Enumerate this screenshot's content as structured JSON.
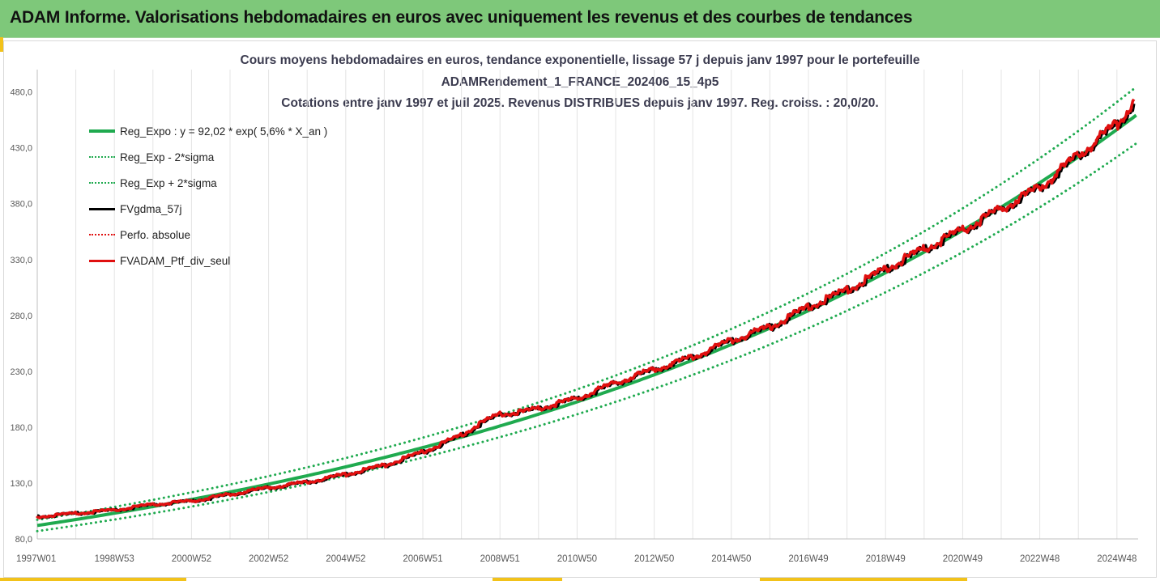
{
  "banner": {
    "title": "ADAM Informe. Valorisations hebdomadaires en euros avec uniquement les revenus et des courbes de tendances"
  },
  "colors": {
    "banner": "#7ec87a",
    "accent": "#f2c21a",
    "green": "#1faa4f",
    "black": "#000000",
    "red": "#e01010"
  },
  "chart_data": {
    "type": "line",
    "title_lines": [
      "Cours moyens hebdomadaires  en euros, tendance exponentielle, lissage 57 j depuis janv 1997 pour le portefeuille",
      "ADAMRendement_1_FRANCE_202406_15_4p5",
      "Cotations  entre janv 1997 et juil 2025. Revenus DISTRIBUES depuis janv 1997. Reg. croiss. : 20,0/20."
    ],
    "xlabel": "",
    "ylabel": "",
    "x_tick_labels": [
      "1997W01",
      "1998W53",
      "2000W52",
      "2002W52",
      "2004W52",
      "2006W51",
      "2008W51",
      "2010W50",
      "2012W50",
      "2014W50",
      "2016W49",
      "2018W49",
      "2020W49",
      "2022W48",
      "2024W48"
    ],
    "x_tick_years": [
      1997.0,
      1999.0,
      2001.0,
      2003.0,
      2005.0,
      2007.0,
      2009.0,
      2011.0,
      2013.0,
      2015.0,
      2017.0,
      2019.0,
      2021.0,
      2023.0,
      2025.0
    ],
    "x_range": [
      1997.0,
      2025.55
    ],
    "ylim": [
      80,
      500
    ],
    "y_ticks": [
      80,
      130,
      180,
      230,
      280,
      330,
      380,
      430,
      480
    ],
    "y_tick_labels": [
      "80,0",
      "130,0",
      "180,0",
      "230,0",
      "280,0",
      "330,0",
      "380,0",
      "430,0",
      "480,0"
    ],
    "grid": "vertical",
    "legend_position": "top-left",
    "regression": {
      "a": 92.02,
      "rate": 0.0564
    },
    "series": [
      {
        "name": "Reg_Expo : y = 92,02 * exp( 5,6% *  X_an )",
        "color": "#1faa4f",
        "style": "solid",
        "width": 4,
        "kind": "expo",
        "factor": 1.0
      },
      {
        "name": "Reg_Exp - 2*sigma",
        "color": "#1faa4f",
        "style": "dotted",
        "width": 3,
        "kind": "expo",
        "factor": 0.945
      },
      {
        "name": "Reg_Exp + 2*sigma",
        "color": "#1faa4f",
        "style": "dotted",
        "width": 3,
        "kind": "expo",
        "factor": 1.055
      },
      {
        "name": "FVgdma_57j",
        "color": "#000000",
        "style": "solid",
        "width": 3.5,
        "kind": "points",
        "dx": 0.05
      },
      {
        "name": "Perfo. absolue",
        "color": "#e01010",
        "style": "dotted",
        "width": 3,
        "kind": "points",
        "dx": 0
      },
      {
        "name": "FVADAM_Ptf_div_seul",
        "color": "#e01010",
        "style": "solid",
        "width": 3.5,
        "kind": "points",
        "dx": 0
      }
    ],
    "portfolio_points": [
      {
        "x": 1997.0,
        "y": 100
      },
      {
        "x": 1998.0,
        "y": 103
      },
      {
        "x": 1999.0,
        "y": 106
      },
      {
        "x": 2000.0,
        "y": 111
      },
      {
        "x": 2001.0,
        "y": 114
      },
      {
        "x": 2002.0,
        "y": 120
      },
      {
        "x": 2003.0,
        "y": 126
      },
      {
        "x": 2004.0,
        "y": 131
      },
      {
        "x": 2005.0,
        "y": 138
      },
      {
        "x": 2006.0,
        "y": 146
      },
      {
        "x": 2007.0,
        "y": 158
      },
      {
        "x": 2008.0,
        "y": 173
      },
      {
        "x": 2008.4,
        "y": 182
      },
      {
        "x": 2009.0,
        "y": 192
      },
      {
        "x": 2009.6,
        "y": 194
      },
      {
        "x": 2010.0,
        "y": 197
      },
      {
        "x": 2011.0,
        "y": 206
      },
      {
        "x": 2012.0,
        "y": 220
      },
      {
        "x": 2013.0,
        "y": 232
      },
      {
        "x": 2014.0,
        "y": 243
      },
      {
        "x": 2015.0,
        "y": 258
      },
      {
        "x": 2016.0,
        "y": 270
      },
      {
        "x": 2017.0,
        "y": 288
      },
      {
        "x": 2018.0,
        "y": 303
      },
      {
        "x": 2019.0,
        "y": 322
      },
      {
        "x": 2020.0,
        "y": 340
      },
      {
        "x": 2021.0,
        "y": 357
      },
      {
        "x": 2022.0,
        "y": 376
      },
      {
        "x": 2023.0,
        "y": 395
      },
      {
        "x": 2024.0,
        "y": 424
      },
      {
        "x": 2025.0,
        "y": 452
      },
      {
        "x": 2025.3,
        "y": 465
      },
      {
        "x": 2025.45,
        "y": 477
      }
    ]
  }
}
